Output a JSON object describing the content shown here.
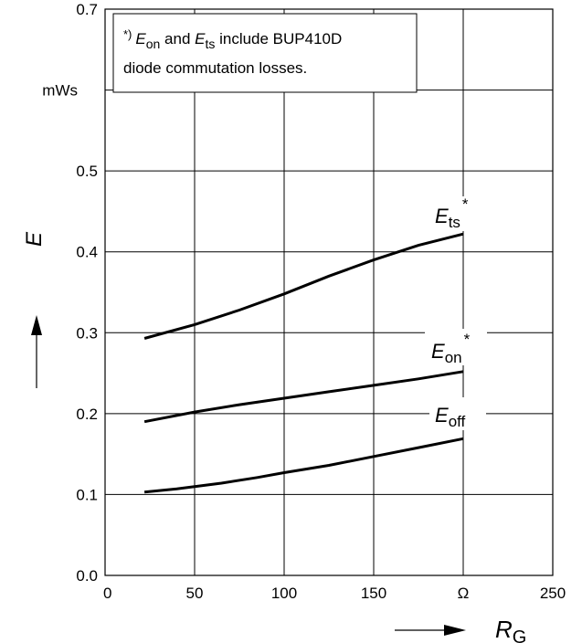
{
  "chart_data": {
    "type": "line",
    "title": "",
    "xlabel": {
      "symbol": "R",
      "subscript": "G"
    },
    "ylabel": "E",
    "x_unit": "Ω",
    "y_unit": "mWs",
    "xlim": [
      0,
      250
    ],
    "ylim": [
      0.0,
      0.7
    ],
    "x_ticks": [
      "0",
      "50",
      "100",
      "150",
      "Ω",
      "250"
    ],
    "y_ticks": [
      "0.0",
      "0.1",
      "0.2",
      "0.3",
      "0.4",
      "0.5",
      "mWs",
      "0.7"
    ],
    "grid": true,
    "note": {
      "marker": "*)",
      "line1_a": "on",
      "line1_b": " and ",
      "line1_c": "ts",
      "line1_d": " include BUP410D",
      "line2": "diode commutation losses."
    },
    "series": [
      {
        "name": "E_ts*",
        "label_main": "E",
        "label_sub": "ts",
        "label_sup": "*",
        "x": [
          22,
          50,
          75,
          100,
          125,
          150,
          175,
          200
        ],
        "y": [
          0.293,
          0.31,
          0.328,
          0.348,
          0.37,
          0.39,
          0.408,
          0.422
        ]
      },
      {
        "name": "E_on*",
        "label_main": "E",
        "label_sub": "on",
        "label_sup": "*",
        "x": [
          22,
          50,
          75,
          100,
          125,
          150,
          175,
          200
        ],
        "y": [
          0.19,
          0.202,
          0.211,
          0.219,
          0.227,
          0.235,
          0.243,
          0.252
        ]
      },
      {
        "name": "E_off",
        "label_main": "E",
        "label_sub": "off",
        "label_sup": "",
        "x": [
          22,
          40,
          65,
          85,
          100,
          125,
          150,
          175,
          200
        ],
        "y": [
          0.103,
          0.107,
          0.114,
          0.121,
          0.127,
          0.136,
          0.147,
          0.158,
          0.169
        ]
      }
    ]
  }
}
